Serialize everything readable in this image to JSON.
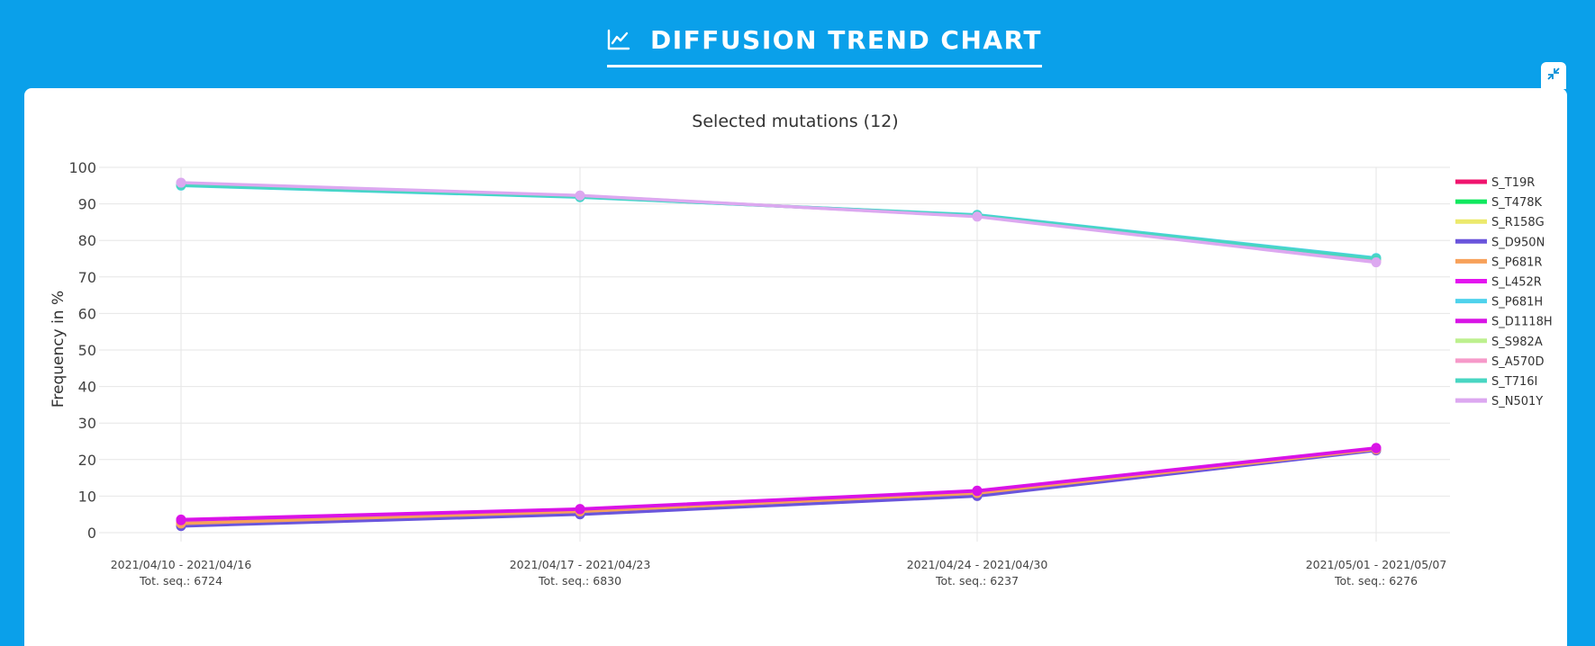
{
  "header": {
    "title": "DIFFUSION TREND CHART",
    "title_icon": "line-chart-icon",
    "collapse_icon": "collapse-arrows-icon"
  },
  "colors": {
    "background": "#0aa0ea",
    "panel": "#ffffff",
    "grid": "#e6e6e6"
  },
  "chart_data": {
    "type": "line",
    "title": "Selected mutations (12)",
    "ylabel": "Frequency in %",
    "xlabel": "",
    "ylim": [
      0,
      100
    ],
    "yticks": [
      0,
      10,
      20,
      30,
      40,
      50,
      60,
      70,
      80,
      90,
      100
    ],
    "grid": true,
    "legend_position": "right",
    "categories": [
      [
        "2021/04/10 - 2021/04/16",
        "Tot. seq.: 6724"
      ],
      [
        "2021/04/17 - 2021/04/23",
        "Tot. seq.: 6830"
      ],
      [
        "2021/04/24 - 2021/04/30",
        "Tot. seq.: 6237"
      ],
      [
        "2021/05/01 - 2021/05/07",
        "Tot. seq.: 6276"
      ]
    ],
    "series": [
      {
        "name": "S_T19R",
        "color": "#f0146e",
        "values": [
          3.2,
          6.3,
          11.3,
          23.0
        ]
      },
      {
        "name": "S_T478K",
        "color": "#10e85e",
        "values": [
          3.0,
          6.0,
          11.0,
          22.8
        ]
      },
      {
        "name": "S_R158G",
        "color": "#ece96c",
        "values": [
          3.1,
          6.2,
          11.2,
          22.9
        ]
      },
      {
        "name": "S_D950N",
        "color": "#6a55dc",
        "values": [
          1.8,
          5.0,
          10.0,
          22.5
        ]
      },
      {
        "name": "S_P681R",
        "color": "#f7a15a",
        "values": [
          2.5,
          5.8,
          10.8,
          22.8
        ]
      },
      {
        "name": "S_L452R",
        "color": "#e414f0",
        "values": [
          3.6,
          6.5,
          11.5,
          23.2
        ]
      },
      {
        "name": "S_P681H",
        "color": "#4fd2ec",
        "values": [
          95.0,
          91.8,
          87.0,
          75.2
        ]
      },
      {
        "name": "S_D1118H",
        "color": "#d814e6",
        "values": [
          3.4,
          6.4,
          11.4,
          23.1
        ]
      },
      {
        "name": "S_S982A",
        "color": "#bdf08f",
        "values": [
          95.2,
          92.0,
          86.8,
          74.8
        ]
      },
      {
        "name": "S_A570D",
        "color": "#f69ac9",
        "values": [
          95.6,
          92.2,
          86.6,
          74.4
        ]
      },
      {
        "name": "S_T716I",
        "color": "#48d6c2",
        "values": [
          95.1,
          91.9,
          86.9,
          75.0
        ]
      },
      {
        "name": "S_N501Y",
        "color": "#dca8f0",
        "values": [
          95.8,
          92.3,
          86.5,
          74.0
        ]
      }
    ]
  }
}
